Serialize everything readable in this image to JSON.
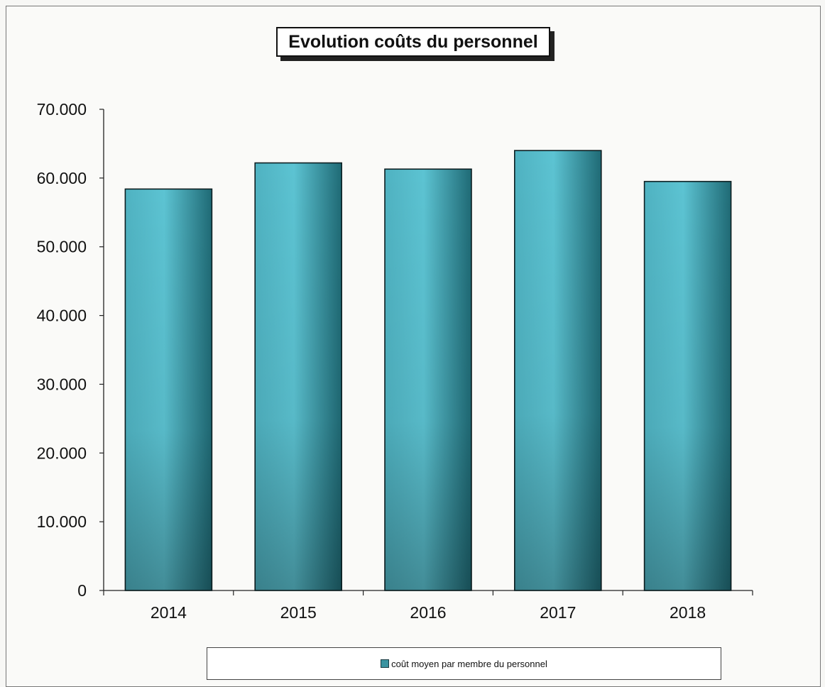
{
  "chart_data": {
    "type": "bar",
    "title": "Evolution coûts du personnel",
    "categories": [
      "2014",
      "2015",
      "2016",
      "2017",
      "2018"
    ],
    "series": [
      {
        "name": "coût moyen par membre du personnel",
        "values": [
          58400,
          62200,
          61300,
          64000,
          59500
        ]
      }
    ],
    "ylim": [
      0,
      70000
    ],
    "yticks": [
      "0",
      "10.000",
      "20.000",
      "30.000",
      "40.000",
      "50.000",
      "60.000",
      "70.000"
    ],
    "ytick_values": [
      0,
      10000,
      20000,
      30000,
      40000,
      50000,
      60000,
      70000
    ],
    "grid": false,
    "legend_position": "bottom",
    "colors": {
      "bar_light": "#5cc3d2",
      "bar_dark": "#2e7f8c",
      "bar_outline": "#0d1f22"
    }
  }
}
